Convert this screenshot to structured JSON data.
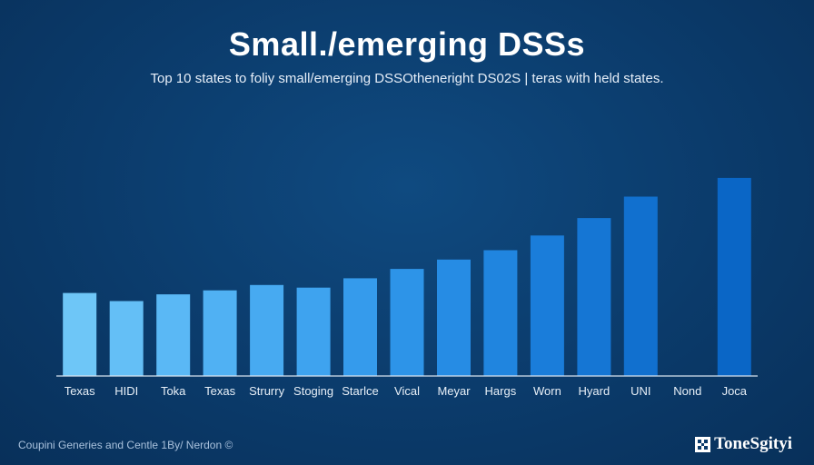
{
  "title": "Small./emerging DSSs",
  "subtitle": "Top 10 states to foliy small/emerging DSSOtheneright DS02S | teras with held states.",
  "footer": {
    "credit": "Coupini Generies and Centle 1By/ Nerdon ©",
    "brand": "ToneSgityi"
  },
  "chart_data": {
    "type": "bar",
    "title": "Small./emerging DSSs",
    "subtitle": "Top 10 states to foliy small/emerging DSSOtheneright DS02S | teras with held states.",
    "xlabel": "",
    "ylabel": "",
    "categories": [
      "Texas",
      "HIDI",
      "Toka",
      "Texas",
      "Strurry",
      "Stoging",
      "Starlce",
      "Vical",
      "Meyar",
      "Hargs",
      "Worn",
      "Hyard",
      "UNI",
      "Nond",
      "Joca"
    ],
    "values": [
      31,
      28,
      30.5,
      32,
      34,
      33,
      36.5,
      40,
      43.5,
      47,
      52.5,
      59,
      67,
      0,
      74
    ],
    "ylim": [
      0,
      76
    ],
    "grid": false,
    "colors": [
      "#6ec6f7",
      "#64bff6",
      "#5ab8f5",
      "#50b1f3",
      "#47aaf1",
      "#3ea3ef",
      "#359bec",
      "#2d94e8",
      "#268ce4",
      "#2085df",
      "#1a7dda",
      "#1576d4",
      "#1170cf",
      "#0d6aca",
      "#0a66c6"
    ],
    "baseline_color": "#d8e4f0"
  }
}
